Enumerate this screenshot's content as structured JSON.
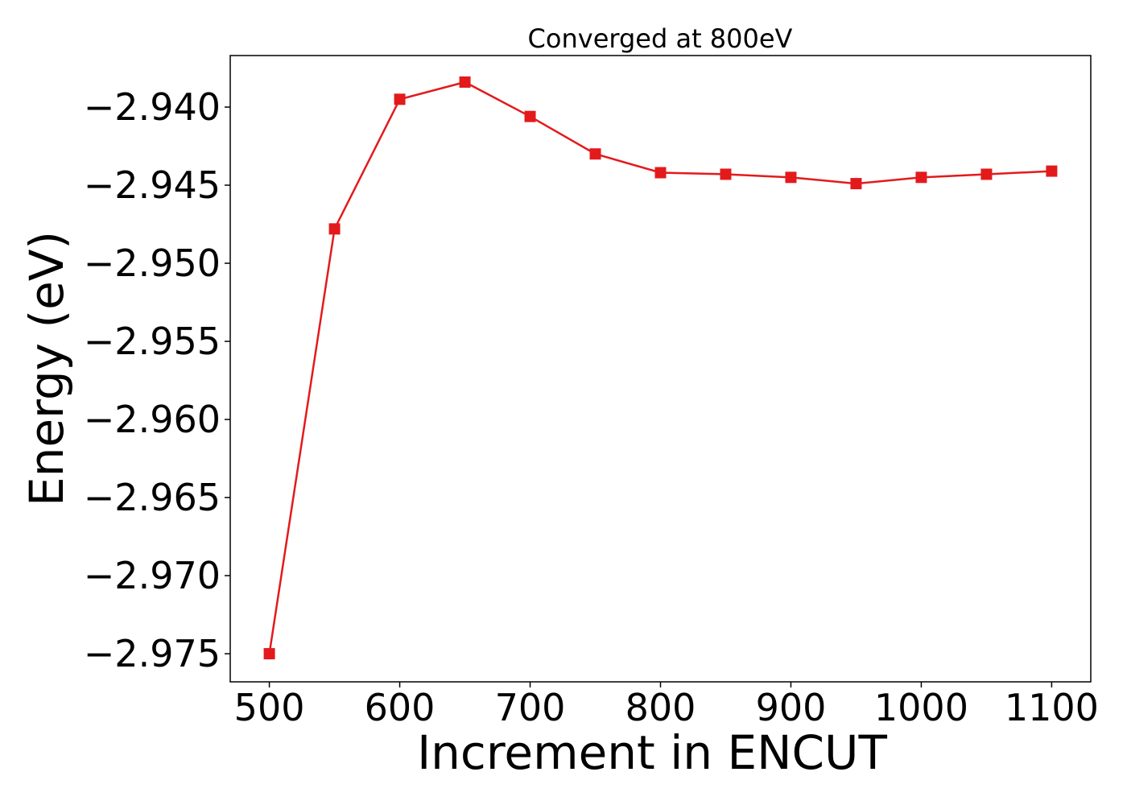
{
  "chart_data": {
    "type": "line",
    "title": "Converged at 800eV",
    "xlabel": "Increment in ENCUT",
    "ylabel": "Energy (eV)",
    "xlim": [
      470,
      1130
    ],
    "ylim": [
      -2.9768,
      -2.9367
    ],
    "xticks": [
      500,
      600,
      700,
      800,
      900,
      1000,
      1100
    ],
    "xtick_labels": [
      "500",
      "600",
      "700",
      "800",
      "900",
      "1000",
      "1100"
    ],
    "yticks": [
      -2.94,
      -2.945,
      -2.95,
      -2.955,
      -2.96,
      -2.965,
      -2.97,
      -2.975
    ],
    "ytick_labels": [
      "−2.940",
      "−2.945",
      "−2.950",
      "−2.955",
      "−2.960",
      "−2.965",
      "−2.970",
      "−2.975"
    ],
    "grid": false,
    "series": [
      {
        "color": "#e31a1c",
        "marker": "square",
        "x": [
          500,
          550,
          600,
          650,
          700,
          750,
          800,
          850,
          900,
          950,
          1000,
          1050,
          1100
        ],
        "y": [
          -2.975,
          -2.9478,
          -2.9395,
          -2.9384,
          -2.9406,
          -2.943,
          -2.9442,
          -2.9443,
          -2.9445,
          -2.9449,
          -2.9445,
          -2.9443,
          -2.9441
        ]
      }
    ]
  }
}
